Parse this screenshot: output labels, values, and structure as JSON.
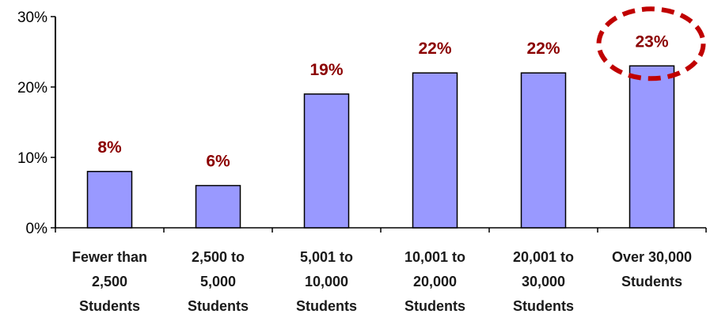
{
  "chart_data": {
    "type": "bar",
    "categories": [
      [
        "Fewer than",
        "2,500",
        "Students"
      ],
      [
        "2,500 to",
        "5,000",
        "Students"
      ],
      [
        "5,001 to",
        "10,000",
        "Students"
      ],
      [
        "10,001 to",
        "20,000",
        "Students"
      ],
      [
        "20,001 to",
        "30,000",
        "Students"
      ],
      [
        "Over 30,000",
        "Students"
      ]
    ],
    "values": [
      8,
      6,
      19,
      22,
      22,
      23
    ],
    "value_labels": [
      "8%",
      "6%",
      "19%",
      "22%",
      "22%",
      "23%"
    ],
    "y_ticks": [
      {
        "value": 0,
        "label": "0%"
      },
      {
        "value": 10,
        "label": "10%"
      },
      {
        "value": 20,
        "label": "20%"
      },
      {
        "value": 30,
        "label": "30%"
      }
    ],
    "ylim": [
      0,
      30
    ],
    "title": "",
    "xlabel": "",
    "ylabel": "",
    "grid": false,
    "highlighted_category_index": 5,
    "colors": {
      "bar_fill": "#9999FF",
      "bar_stroke": "#000000",
      "data_label": "#8B0000",
      "highlight_ellipse": "#C00000",
      "axis": "#000000"
    }
  }
}
